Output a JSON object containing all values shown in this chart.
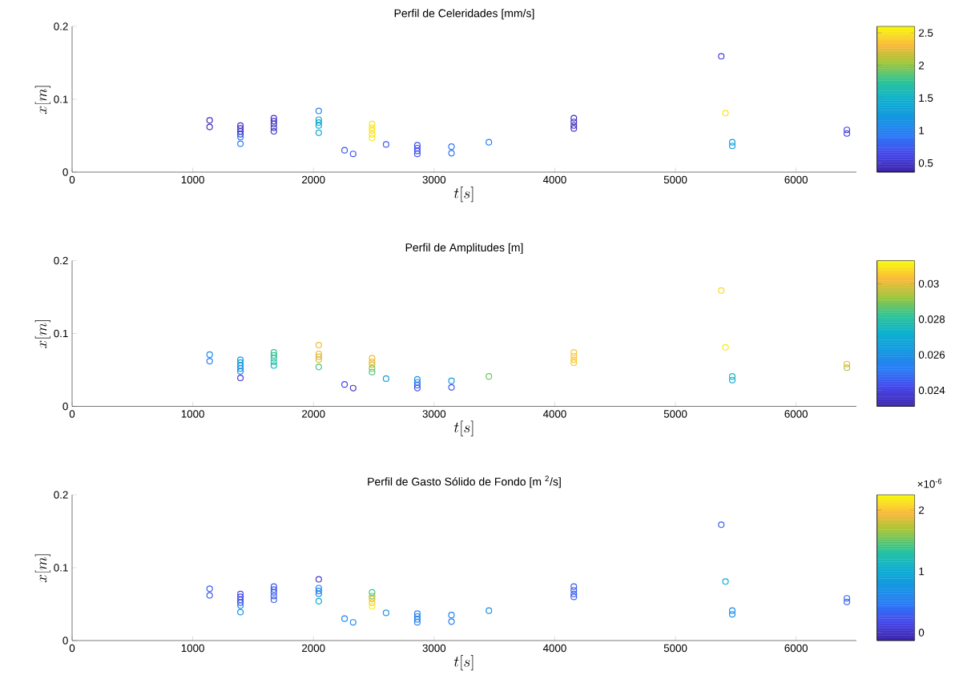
{
  "chart_data": [
    {
      "type": "scatter",
      "title": "Perfil de Celeridades [mm/s]",
      "xlabel": "t[s]",
      "ylabel": "x[m]",
      "marker": "circle",
      "x": [
        1140,
        1140,
        1395,
        1395,
        1395,
        1395,
        1395,
        1395,
        1672,
        1672,
        1672,
        1672,
        1672,
        2044,
        2044,
        2044,
        2044,
        2044,
        2258,
        2329,
        2486,
        2486,
        2486,
        2486,
        2486,
        2602,
        2861,
        2861,
        2861,
        2861,
        3144,
        3144,
        3454,
        4158,
        4158,
        4158,
        4158,
        5380,
        5415,
        5471,
        5471,
        6421,
        6421
      ],
      "values": [
        0.071,
        0.062,
        0.064,
        0.06,
        0.056,
        0.052,
        0.048,
        0.039,
        0.074,
        0.07,
        0.066,
        0.061,
        0.056,
        0.084,
        0.072,
        0.068,
        0.064,
        0.054,
        0.03,
        0.025,
        0.066,
        0.061,
        0.057,
        0.052,
        0.047,
        0.038,
        0.037,
        0.033,
        0.029,
        0.025,
        0.035,
        0.026,
        0.041,
        0.074,
        0.069,
        0.064,
        0.06,
        0.159,
        0.081,
        0.041,
        0.036,
        0.058,
        0.053
      ],
      "cvalues": [
        0.45,
        0.45,
        0.5,
        0.5,
        0.5,
        0.5,
        0.9,
        0.95,
        0.5,
        0.5,
        0.5,
        0.5,
        0.5,
        0.95,
        1.4,
        1.4,
        1.4,
        1.4,
        0.75,
        0.7,
        2.5,
        2.5,
        2.5,
        2.5,
        2.5,
        0.75,
        0.7,
        0.7,
        0.7,
        0.7,
        0.9,
        0.9,
        0.95,
        0.45,
        0.45,
        0.45,
        0.45,
        0.6,
        2.5,
        1.3,
        1.3,
        0.6,
        0.6
      ],
      "clim": [
        0.36,
        2.6
      ],
      "cticks": [
        0.5,
        1,
        1.5,
        2,
        2.5
      ],
      "xlim": [
        0,
        6500
      ],
      "ylim": [
        0,
        0.2
      ],
      "xticks": [
        0,
        1000,
        2000,
        3000,
        4000,
        5000,
        6000
      ],
      "yticks": [
        0,
        0.1,
        0.2
      ]
    },
    {
      "type": "scatter",
      "title": "Perfil de Amplitudes [m]",
      "xlabel": "t[s]",
      "ylabel": "x[m]",
      "marker": "circle",
      "x": [
        1140,
        1140,
        1395,
        1395,
        1395,
        1395,
        1395,
        1395,
        1672,
        1672,
        1672,
        1672,
        1672,
        2044,
        2044,
        2044,
        2044,
        2044,
        2258,
        2329,
        2486,
        2486,
        2486,
        2486,
        2486,
        2602,
        2861,
        2861,
        2861,
        2861,
        3144,
        3144,
        3454,
        4158,
        4158,
        4158,
        4158,
        5380,
        5415,
        5471,
        5471,
        6421,
        6421
      ],
      "values": [
        0.071,
        0.062,
        0.064,
        0.06,
        0.056,
        0.052,
        0.048,
        0.039,
        0.074,
        0.07,
        0.066,
        0.061,
        0.056,
        0.084,
        0.072,
        0.068,
        0.064,
        0.054,
        0.03,
        0.025,
        0.066,
        0.061,
        0.057,
        0.052,
        0.047,
        0.038,
        0.037,
        0.033,
        0.029,
        0.025,
        0.035,
        0.026,
        0.041,
        0.074,
        0.069,
        0.064,
        0.06,
        0.159,
        0.081,
        0.041,
        0.036,
        0.058,
        0.053
      ],
      "cvalues": [
        0.0258,
        0.0252,
        0.0265,
        0.0265,
        0.0265,
        0.0258,
        0.0258,
        0.0238,
        0.0282,
        0.0282,
        0.0282,
        0.0282,
        0.0272,
        0.0302,
        0.03,
        0.03,
        0.03,
        0.0285,
        0.024,
        0.0235,
        0.0302,
        0.03,
        0.03,
        0.029,
        0.0285,
        0.0265,
        0.0262,
        0.0255,
        0.0248,
        0.0242,
        0.0262,
        0.0245,
        0.0288,
        0.0305,
        0.0305,
        0.0305,
        0.0305,
        0.0308,
        0.031,
        0.0275,
        0.027,
        0.03,
        0.0295
      ],
      "clim": [
        0.0231,
        0.0313
      ],
      "cticks": [
        0.024,
        0.026,
        0.028,
        0.03
      ],
      "xlim": [
        0,
        6500
      ],
      "ylim": [
        0,
        0.2
      ],
      "xticks": [
        0,
        1000,
        2000,
        3000,
        4000,
        5000,
        6000
      ],
      "yticks": [
        0,
        0.1,
        0.2
      ]
    },
    {
      "type": "scatter",
      "title": "Perfil de Gasto Sólido de Fondo [m $^{2}$/s]",
      "xlabel": "t[s]",
      "ylabel": "x[m]",
      "marker": "circle",
      "annotations": [
        "×10$^{-6}$"
      ],
      "x": [
        1140,
        1140,
        1395,
        1395,
        1395,
        1395,
        1395,
        1395,
        1672,
        1672,
        1672,
        1672,
        1672,
        2044,
        2044,
        2044,
        2044,
        2044,
        2258,
        2329,
        2486,
        2486,
        2486,
        2486,
        2486,
        2602,
        2861,
        2861,
        2861,
        2861,
        3144,
        3144,
        3454,
        4158,
        4158,
        4158,
        4158,
        5380,
        5415,
        5471,
        5471,
        6421,
        6421
      ],
      "values": [
        0.071,
        0.062,
        0.064,
        0.06,
        0.056,
        0.052,
        0.048,
        0.039,
        0.074,
        0.07,
        0.066,
        0.061,
        0.056,
        0.084,
        0.072,
        0.068,
        0.064,
        0.054,
        0.03,
        0.025,
        0.066,
        0.061,
        0.057,
        0.052,
        0.047,
        0.038,
        0.037,
        0.033,
        0.029,
        0.025,
        0.035,
        0.026,
        0.041,
        0.074,
        0.069,
        0.064,
        0.06,
        0.159,
        0.081,
        0.041,
        0.036,
        0.058,
        0.053
      ],
      "cvalues": [
        0.3,
        0.3,
        0.2,
        0.2,
        0.2,
        0.2,
        0.6,
        0.7,
        0.3,
        0.3,
        0.3,
        0.3,
        0.3,
        0.05,
        0.6,
        0.6,
        0.6,
        1.0,
        0.55,
        0.6,
        1.4,
        1.6,
        1.8,
        2.0,
        2.2,
        0.7,
        0.55,
        0.55,
        0.55,
        0.55,
        0.55,
        0.55,
        0.7,
        0.3,
        0.3,
        0.3,
        0.3,
        0.3,
        1.0,
        0.65,
        0.65,
        0.35,
        0.35
      ],
      "clim": [
        -0.13,
        2.25
      ],
      "cticks": [
        0,
        1,
        2
      ],
      "xlim": [
        0,
        6500
      ],
      "ylim": [
        0,
        0.2
      ],
      "xticks": [
        0,
        1000,
        2000,
        3000,
        4000,
        5000,
        6000
      ],
      "yticks": [
        0,
        0.1,
        0.2
      ]
    }
  ]
}
